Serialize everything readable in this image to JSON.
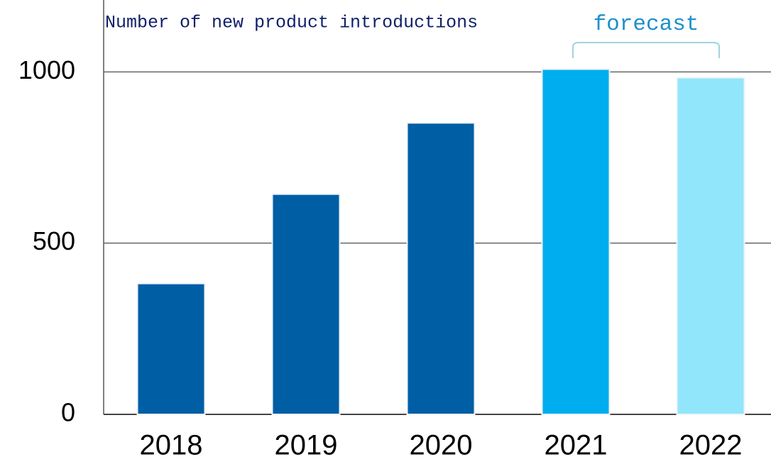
{
  "chart_data": {
    "type": "bar",
    "title": "Number of new product introductions",
    "annotation": "forecast",
    "categories": [
      "2018",
      "2019",
      "2020",
      "2021",
      "2022"
    ],
    "values": [
      382,
      643,
      851,
      1008,
      983
    ],
    "colors": [
      "#005ea5",
      "#005ea5",
      "#005ea5",
      "#00adef",
      "#91e6fb"
    ],
    "ylim": [
      0,
      1210
    ],
    "yticks": [
      0,
      500,
      1000
    ],
    "grid": true
  }
}
